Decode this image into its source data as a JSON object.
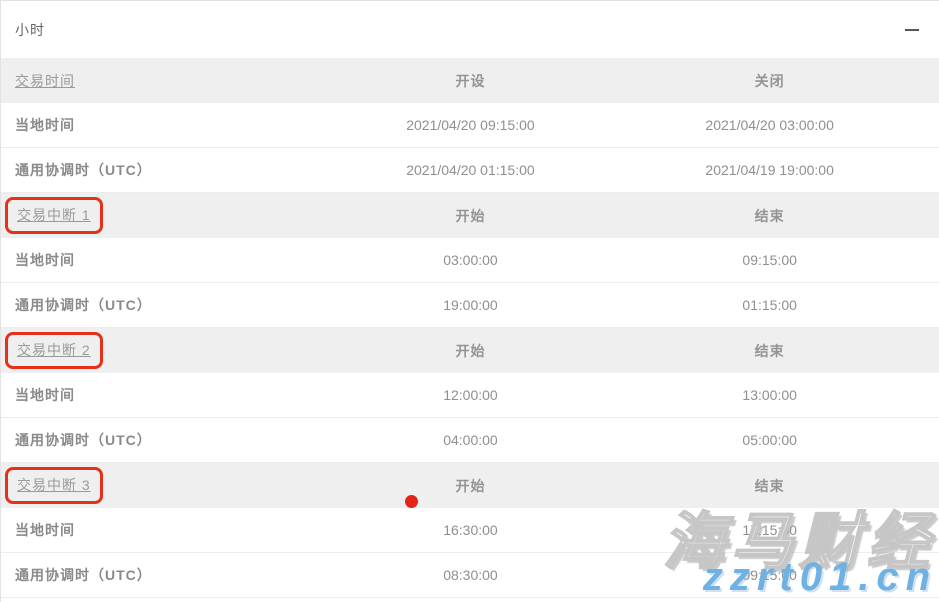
{
  "panel": {
    "title": "小时",
    "collapse_icon": "minus"
  },
  "columns": {
    "label_header_main": "交易时间",
    "open_header": "开设",
    "close_header": "关闭",
    "start_header": "开始",
    "end_header": "结束"
  },
  "sections": [
    {
      "header": {
        "label": "交易时间",
        "col2": "开设",
        "col3": "关闭",
        "highlighted": false
      },
      "rows": [
        {
          "label": "当地时间",
          "col2": "2021/04/20 09:15:00",
          "col3": "2021/04/20 03:00:00"
        },
        {
          "label": "通用协调时（UTC）",
          "col2": "2021/04/20 01:15:00",
          "col3": "2021/04/19 19:00:00"
        }
      ]
    },
    {
      "header": {
        "label": "交易中断 1",
        "col2": "开始",
        "col3": "结束",
        "highlighted": true
      },
      "rows": [
        {
          "label": "当地时间",
          "col2": "03:00:00",
          "col3": "09:15:00"
        },
        {
          "label": "通用协调时（UTC）",
          "col2": "19:00:00",
          "col3": "01:15:00"
        }
      ]
    },
    {
      "header": {
        "label": "交易中断 2",
        "col2": "开始",
        "col3": "结束",
        "highlighted": true
      },
      "rows": [
        {
          "label": "当地时间",
          "col2": "12:00:00",
          "col3": "13:00:00"
        },
        {
          "label": "通用协调时（UTC）",
          "col2": "04:00:00",
          "col3": "05:00:00"
        }
      ]
    },
    {
      "header": {
        "label": "交易中断 3",
        "col2": "开始",
        "col3": "结束",
        "highlighted": true
      },
      "rows": [
        {
          "label": "当地时间",
          "col2": "16:30:00",
          "col3": "17:15:00"
        },
        {
          "label": "通用协调时（UTC）",
          "col2": "08:30:00",
          "col3": "09:15:00"
        }
      ]
    }
  ],
  "annotations": {
    "highlight_box_color": "#e5301c",
    "red_dot_color": "#e2241b"
  },
  "watermark": {
    "brand": "海马财经",
    "site": "zzrt01.cn",
    "site_color": "#6fb1e2"
  }
}
